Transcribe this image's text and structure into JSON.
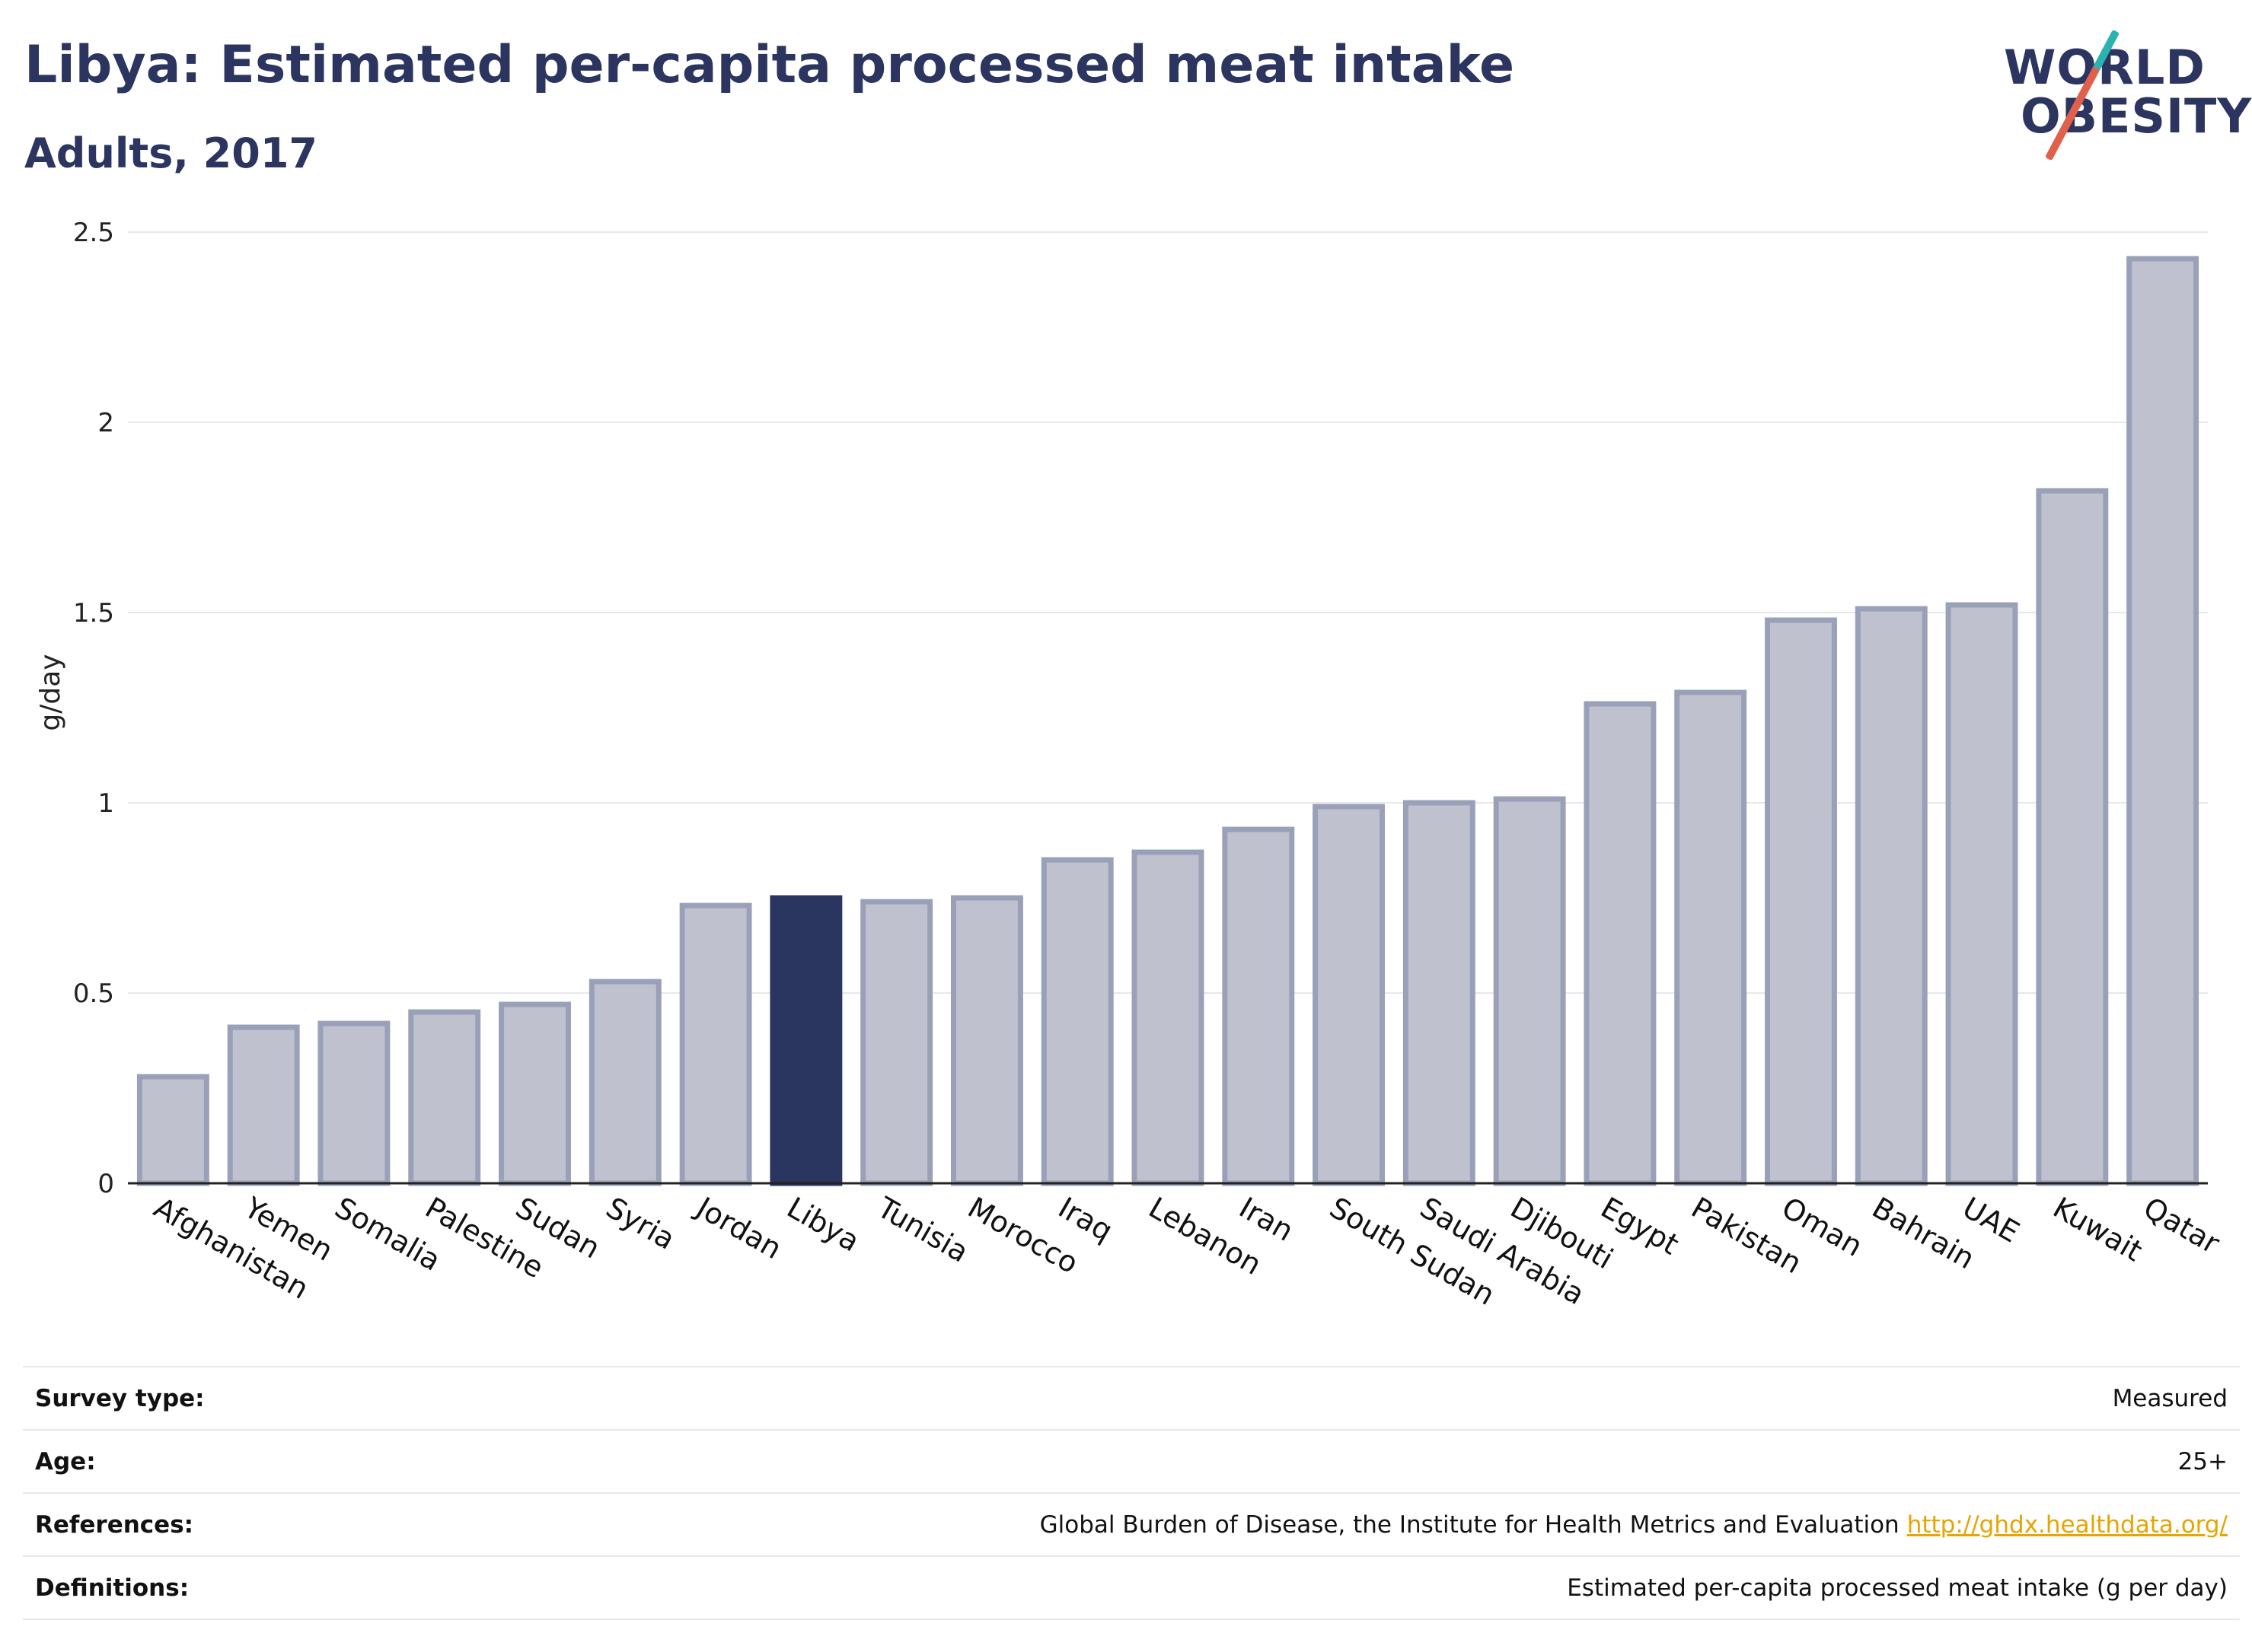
{
  "header": {
    "title": "Libya: Estimated per-capita processed meat intake",
    "subtitle": "Adults, 2017"
  },
  "logo": {
    "line1": "WORLD",
    "line2": "OBESITY"
  },
  "chart_data": {
    "type": "bar",
    "title": "Libya: Estimated per-capita processed meat intake",
    "subtitle": "Adults, 2017",
    "xlabel": "",
    "ylabel": "g/day",
    "ylim": [
      0,
      2.5
    ],
    "yticks": [
      0,
      0.5,
      1,
      1.5,
      2,
      2.5
    ],
    "ytick_labels": [
      "0",
      "0.5",
      "1",
      "1.5",
      "2",
      "2.5"
    ],
    "grid": true,
    "highlight": "Libya",
    "colors": {
      "bar_fill": "#bfc2ce",
      "bar_stroke": "#9aa0b8",
      "highlight_fill": "#2a3560",
      "grid": "#e6e8ee",
      "axis": "#222222"
    },
    "categories": [
      "Afghanistan",
      "Yemen",
      "Somalia",
      "Palestine",
      "Sudan",
      "Syria",
      "Jordan",
      "Libya",
      "Tunisia",
      "Morocco",
      "Iraq",
      "Lebanon",
      "Iran",
      "South Sudan",
      "Saudi Arabia",
      "Djibouti",
      "Egypt",
      "Pakistan",
      "Oman",
      "Bahrain",
      "UAE",
      "Kuwait",
      "Qatar"
    ],
    "values": [
      0.28,
      0.41,
      0.42,
      0.45,
      0.47,
      0.53,
      0.73,
      0.75,
      0.74,
      0.75,
      0.85,
      0.87,
      0.93,
      0.99,
      1.0,
      1.01,
      1.26,
      1.29,
      1.48,
      1.51,
      1.52,
      1.82,
      2.43
    ]
  },
  "meta": {
    "rows": [
      {
        "label": "Survey type:",
        "value": "Measured",
        "link": ""
      },
      {
        "label": "Age:",
        "value": "25+",
        "link": ""
      },
      {
        "label": "References:",
        "value": "Global Burden of Disease, the Institute for Health Metrics and Evaluation",
        "link": "http://ghdx.healthdata.org/"
      },
      {
        "label": "Definitions:",
        "value": "Estimated per-capita processed meat intake (g per day)",
        "link": ""
      }
    ]
  }
}
